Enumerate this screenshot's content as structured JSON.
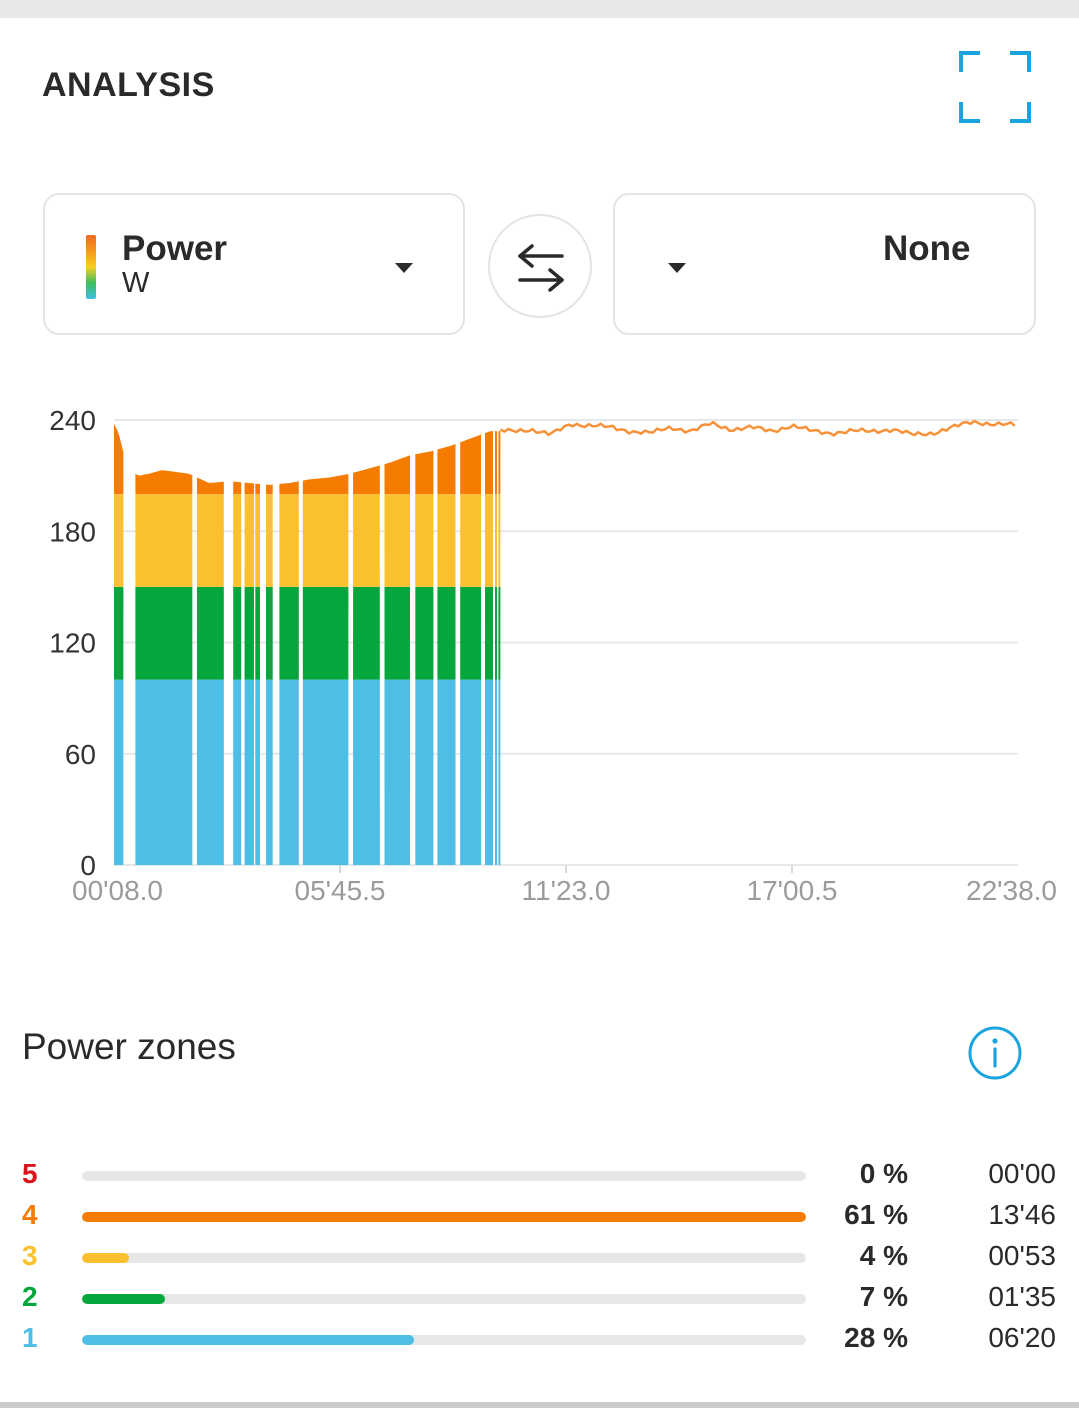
{
  "header": {
    "title": "ANALYSIS",
    "expand_icon": "expand-icon"
  },
  "primary_selector": {
    "label": "Power",
    "unit": "W"
  },
  "swap_icon": "swap-arrows-icon",
  "secondary_selector": {
    "label": "None"
  },
  "colors": {
    "zone1": "#4dbfe6",
    "zone2": "#05a63c",
    "zone3": "#fbc02d",
    "zone4": "#f57c00",
    "zone5": "#d9141d",
    "line": "#f7923a",
    "accent": "#1aa3de"
  },
  "chart_data": {
    "type": "area",
    "title": "",
    "xlabel": "",
    "ylabel": "",
    "ylim": [
      0,
      240
    ],
    "yticks": [
      "240",
      "180",
      "120",
      "60",
      "0"
    ],
    "xticks": [
      "00'08.0",
      "05'45.5",
      "11'23.0",
      "17'00.5",
      "22'38.0"
    ],
    "xlim_seconds": [
      8,
      1358
    ],
    "zone_bounds": [
      0,
      100,
      150,
      200,
      240
    ],
    "series": [
      {
        "x": [
          8,
          15,
          25,
          35,
          45,
          60,
          80,
          100,
          120,
          150,
          180,
          210,
          240,
          270,
          300,
          330,
          360,
          390,
          420,
          450,
          480,
          510,
          540,
          570,
          585,
          600,
          630,
          660,
          690,
          720,
          750,
          780,
          810,
          840,
          870,
          900,
          930,
          960,
          990,
          1020,
          1050,
          1080,
          1110,
          1140,
          1170,
          1200,
          1230,
          1260,
          1290,
          1320,
          1358
        ],
        "values": [
          238,
          233,
          218,
          212,
          210,
          211,
          213,
          212,
          211,
          206,
          207,
          206,
          205,
          206,
          208,
          209,
          211,
          214,
          217,
          221,
          223,
          226,
          230,
          234,
          234,
          234,
          235,
          232,
          238,
          237,
          236,
          234,
          233,
          236,
          234,
          238,
          235,
          236,
          234,
          237,
          234,
          233,
          234,
          234,
          235,
          232,
          233,
          236,
          239,
          238,
          237
        ]
      }
    ],
    "gaps_seconds": [
      [
        22,
        40
      ],
      [
        125,
        132
      ],
      [
        172,
        186
      ],
      [
        198,
        203
      ],
      [
        217,
        219
      ],
      [
        226,
        235
      ],
      [
        245,
        255
      ],
      [
        284,
        290
      ],
      [
        358,
        365
      ],
      [
        405,
        412
      ],
      [
        450,
        458
      ],
      [
        485,
        491
      ],
      [
        518,
        525
      ],
      [
        556,
        562
      ],
      [
        574,
        577
      ],
      [
        580,
        582
      ]
    ],
    "zone_fill_end_seconds": 585
  },
  "zones": {
    "title": "Power zones",
    "info_icon": "info-icon",
    "rows": [
      {
        "zone": "5",
        "percent": 0,
        "pct_label": "0 %",
        "time": "00'00",
        "color": "#d9141d"
      },
      {
        "zone": "4",
        "percent": 61,
        "pct_label": "61 %",
        "time": "13'46",
        "color": "#f57c00"
      },
      {
        "zone": "3",
        "percent": 4,
        "pct_label": "4 %",
        "time": "00'53",
        "color": "#fbc02d"
      },
      {
        "zone": "2",
        "percent": 7,
        "pct_label": "7 %",
        "time": "01'35",
        "color": "#05a63c"
      },
      {
        "zone": "1",
        "percent": 28,
        "pct_label": "28 %",
        "time": "06'20",
        "color": "#4dbfe6"
      }
    ]
  }
}
